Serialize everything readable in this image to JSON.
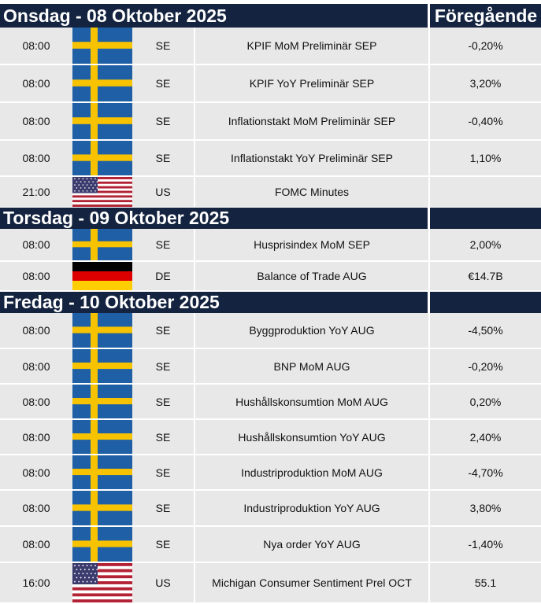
{
  "columns": {
    "previous_header": "Föregående"
  },
  "colors": {
    "header_bg": "#14233f",
    "row_bg": "#e8e8e8",
    "se_blue": "#1f5fa6",
    "se_yellow": "#f7c200",
    "us_red": "#b22234",
    "us_blue": "#3c3b6e"
  },
  "days": [
    {
      "title": "Onsdag - 08 Oktober 2025",
      "show_previous_header": true,
      "events": [
        {
          "time": "08:00",
          "flag": "sweden-flag-icon",
          "country": "SE",
          "event": "KPIF MoM Preliminär SEP",
          "previous": "-0,20%"
        },
        {
          "time": "08:00",
          "flag": "sweden-flag-icon",
          "country": "SE",
          "event": "KPIF YoY Preliminär SEP",
          "previous": "3,20%"
        },
        {
          "time": "08:00",
          "flag": "sweden-flag-icon",
          "country": "SE",
          "event": "Inflationstakt MoM Preliminär SEP",
          "previous": "-0,40%"
        },
        {
          "time": "08:00",
          "flag": "sweden-flag-icon",
          "country": "SE",
          "event": "Inflationstakt YoY Preliminär SEP",
          "previous": "1,10%"
        },
        {
          "time": "21:00",
          "flag": "usa-flag-icon",
          "country": "US",
          "event": "FOMC Minutes",
          "previous": ""
        }
      ]
    },
    {
      "title": "Torsdag - 09 Oktober 2025",
      "show_previous_header": false,
      "events": [
        {
          "time": "08:00",
          "flag": "sweden-flag-icon",
          "country": "SE",
          "event": "Husprisindex MoM SEP",
          "previous": "2,00%"
        },
        {
          "time": "08:00",
          "flag": "germany-flag-icon",
          "country": "DE",
          "event": "Balance of Trade AUG",
          "previous": "€14.7B"
        }
      ]
    },
    {
      "title": "Fredag - 10 Oktober 2025",
      "show_previous_header": false,
      "events": [
        {
          "time": "08:00",
          "flag": "sweden-flag-icon",
          "country": "SE",
          "event": "Byggproduktion YoY AUG",
          "previous": "-4,50%"
        },
        {
          "time": "08:00",
          "flag": "sweden-flag-icon",
          "country": "SE",
          "event": "BNP MoM AUG",
          "previous": "-0,20%"
        },
        {
          "time": "08:00",
          "flag": "sweden-flag-icon",
          "country": "SE",
          "event": "Hushållskonsumtion MoM AUG",
          "previous": "0,20%"
        },
        {
          "time": "08:00",
          "flag": "sweden-flag-icon",
          "country": "SE",
          "event": "Hushållskonsumtion YoY AUG",
          "previous": "2,40%"
        },
        {
          "time": "08:00",
          "flag": "sweden-flag-icon",
          "country": "SE",
          "event": "Industriproduktion MoM AUG",
          "previous": "-4,70%"
        },
        {
          "time": "08:00",
          "flag": "sweden-flag-icon",
          "country": "SE",
          "event": "Industriproduktion YoY AUG",
          "previous": "3,80%"
        },
        {
          "time": "08:00",
          "flag": "sweden-flag-icon",
          "country": "SE",
          "event": "Nya order YoY AUG",
          "previous": "-1,40%"
        },
        {
          "time": "16:00",
          "flag": "usa-flag-icon",
          "country": "US",
          "event": "Michigan Consumer Sentiment Prel OCT",
          "previous": "55.1"
        }
      ]
    }
  ]
}
